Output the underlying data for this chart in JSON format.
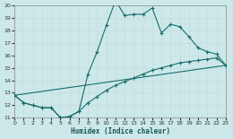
{
  "xlabel": "Humidex (Indice chaleur)",
  "bg_color": "#cce8e8",
  "grid_color": "#aacccc",
  "line_color": "#1a6e6e",
  "xlim": [
    0,
    23
  ],
  "ylim": [
    11,
    20
  ],
  "xticks": [
    0,
    1,
    2,
    3,
    4,
    5,
    6,
    7,
    8,
    9,
    10,
    11,
    12,
    13,
    14,
    15,
    16,
    17,
    18,
    19,
    20,
    21,
    22,
    23
  ],
  "yticks": [
    11,
    12,
    13,
    14,
    15,
    16,
    17,
    18,
    19,
    20
  ],
  "line1_x": [
    0,
    1,
    2,
    3,
    4,
    5,
    6,
    7,
    8,
    9,
    10,
    11,
    12,
    13,
    14,
    15,
    16,
    17,
    18,
    19,
    20,
    21,
    22,
    23
  ],
  "line1_y": [
    12.8,
    12.2,
    12.0,
    11.8,
    11.8,
    11.0,
    11.1,
    11.5,
    14.5,
    16.3,
    18.4,
    20.4,
    19.2,
    19.3,
    19.3,
    19.8,
    17.8,
    18.5,
    18.3,
    17.5,
    16.6,
    16.3,
    16.1,
    15.2
  ],
  "line2_x": [
    0,
    1,
    2,
    3,
    4,
    5,
    6,
    7,
    8,
    9,
    10,
    11,
    12,
    13,
    14,
    15,
    16,
    17,
    18,
    19,
    20,
    21,
    22,
    23
  ],
  "line2_y": [
    12.8,
    12.2,
    12.0,
    11.8,
    11.8,
    11.0,
    11.1,
    11.5,
    12.2,
    12.7,
    13.2,
    13.6,
    13.9,
    14.2,
    14.5,
    14.8,
    15.0,
    15.2,
    15.4,
    15.5,
    15.6,
    15.7,
    15.8,
    15.2
  ],
  "line3_x": [
    0,
    23
  ],
  "line3_y": [
    12.8,
    15.2
  ]
}
